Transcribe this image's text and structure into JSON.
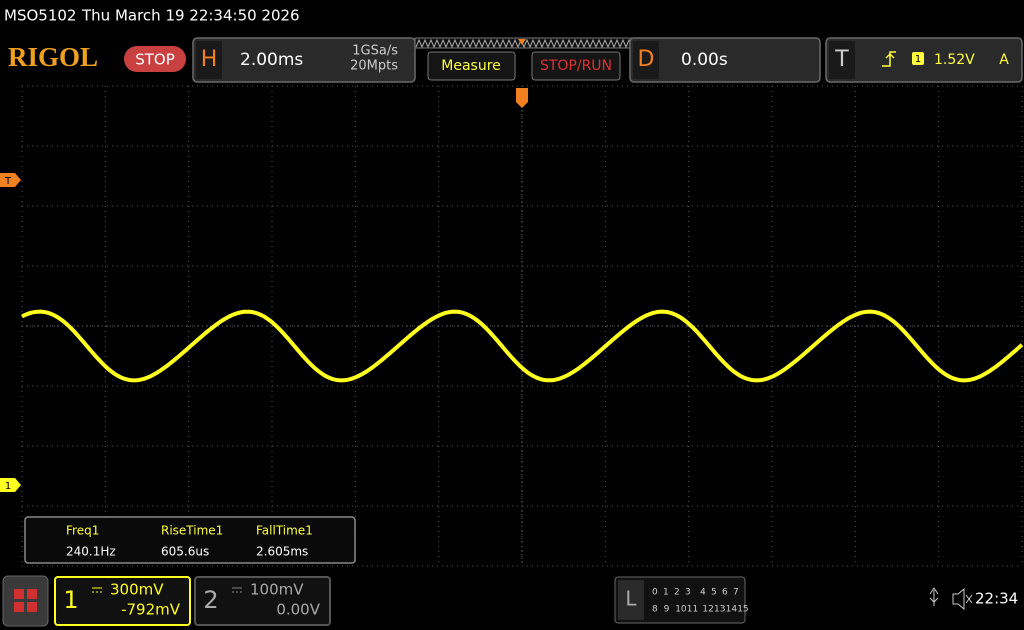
{
  "status_bar": {
    "model": "MSO5102",
    "datetime": "Thu March 19 22:34:50 2026"
  },
  "header": {
    "logo": "RIGOL",
    "run_state": "STOP",
    "horizontal": {
      "label": "H",
      "timebase": "2.00ms",
      "sample_rate": "1GSa/s",
      "memory_depth": "20Mpts"
    },
    "buttons": [
      "Measure",
      "STOP/RUN"
    ],
    "delay": {
      "label": "D",
      "value": "0.00s"
    },
    "trigger": {
      "label": "T",
      "source": "1",
      "level": "1.52V",
      "mode": "A"
    }
  },
  "markers": {
    "trigger_level": "T",
    "channel": "1"
  },
  "measurements": [
    {
      "name": "Freq1",
      "value": "240.1Hz"
    },
    {
      "name": "RiseTime1",
      "value": "605.6us"
    },
    {
      "name": "FallTime1",
      "value": "2.605ms"
    }
  ],
  "channels": [
    {
      "number": "1",
      "scale": "300mV",
      "offset": "-792mV"
    },
    {
      "number": "2",
      "scale": "100mV",
      "offset": "0.00V"
    }
  ],
  "logic": {
    "label": "L",
    "row1": [
      "0",
      "1",
      "2",
      "3",
      "4",
      "5",
      "6",
      "7"
    ],
    "row2": [
      "8",
      "9",
      "10",
      "11",
      "12",
      "13",
      "14",
      "15"
    ]
  },
  "clock": "22:34"
}
